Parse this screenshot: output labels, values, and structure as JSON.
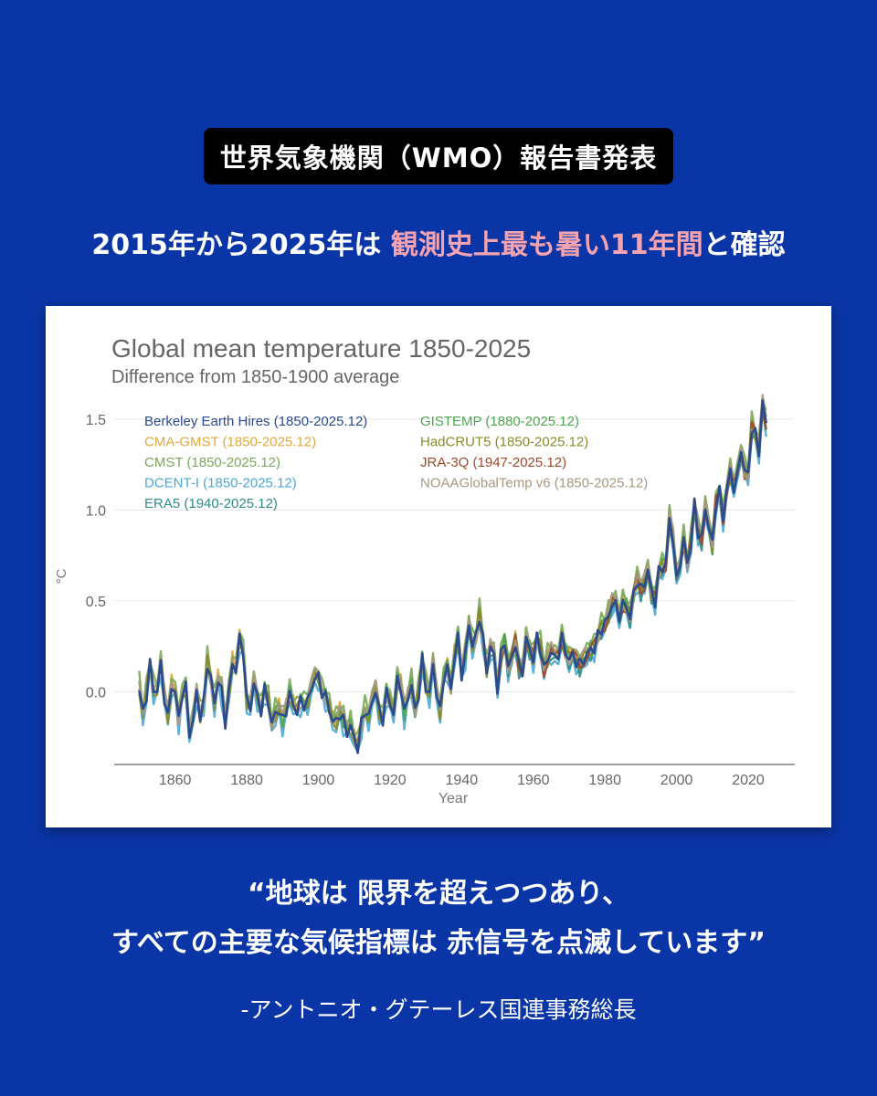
{
  "badge": "世界気象機関（WMO）報告書発表",
  "headline": {
    "part1": "2015年から2025年は ",
    "highlight": "観測史上最も暑い11年間",
    "part2": "と確認",
    "highlight_color": "#f5a3b0"
  },
  "quote": {
    "line1": "“地球は 限界を超えつつあり、",
    "line2": "すべての主要な気候指標は 赤信号を点滅しています”"
  },
  "author": "-アントニオ・グテーレス国連事務総長",
  "chart_data": {
    "type": "line",
    "title": "Global mean temperature 1850-2025",
    "subtitle": "Difference from 1850-1900 average",
    "xlabel": "Year",
    "ylabel": "°C",
    "xlim": [
      1843,
      2033
    ],
    "ylim": [
      -0.4,
      1.62
    ],
    "xticks": [
      1860,
      1880,
      1900,
      1920,
      1940,
      1960,
      1980,
      2000,
      2020
    ],
    "yticks": [
      0.0,
      0.5,
      1.0,
      1.5
    ],
    "grid": true,
    "legend_position": "top-left",
    "anchor_years": [
      1850,
      1855,
      1860,
      1865,
      1870,
      1875,
      1878,
      1880,
      1885,
      1890,
      1895,
      1900,
      1905,
      1910,
      1915,
      1920,
      1925,
      1930,
      1935,
      1940,
      1944,
      1945,
      1950,
      1955,
      1960,
      1965,
      1970,
      1975,
      1980,
      1985,
      1990,
      1995,
      1998,
      2000,
      2005,
      2010,
      2015,
      2016,
      2020,
      2023,
      2024,
      2025
    ],
    "anchor_values": [
      -0.02,
      0.05,
      -0.05,
      -0.12,
      0.05,
      -0.05,
      0.28,
      0.02,
      -0.08,
      -0.12,
      -0.06,
      0.05,
      -0.15,
      -0.25,
      -0.08,
      -0.05,
      -0.03,
      0.05,
      0.02,
      0.22,
      0.35,
      0.28,
      0.15,
      0.2,
      0.22,
      0.2,
      0.22,
      0.15,
      0.42,
      0.45,
      0.58,
      0.6,
      0.85,
      0.7,
      0.88,
      0.95,
      1.1,
      1.25,
      1.25,
      1.45,
      1.55,
      1.45
    ],
    "series": [
      {
        "name": "Berkeley Earth Hires (1850-2025.12)",
        "color": "#2c4a8e",
        "start": 1850,
        "end": 2025,
        "offset": 0.0,
        "seed": 1
      },
      {
        "name": "CMA-GMST (1850-2025.12)",
        "color": "#e3a73b",
        "start": 1850,
        "end": 2025,
        "offset": 0.02,
        "seed": 2
      },
      {
        "name": "CMST (1850-2025.12)",
        "color": "#7aa85a",
        "start": 1850,
        "end": 2025,
        "offset": 0.05,
        "seed": 3
      },
      {
        "name": "DCENT-I (1850-2025.12)",
        "color": "#4aa8d6",
        "start": 1850,
        "end": 2025,
        "offset": -0.04,
        "seed": 4
      },
      {
        "name": "ERA5 (1940-2025.12)",
        "color": "#2e8b85",
        "start": 1940,
        "end": 2025,
        "offset": -0.02,
        "seed": 5
      },
      {
        "name": "GISTEMP (1880-2025.12)",
        "color": "#4fa650",
        "start": 1880,
        "end": 2025,
        "offset": 0.01,
        "seed": 6
      },
      {
        "name": "HadCRUT5 (1850-2025.12)",
        "color": "#8a8a2a",
        "start": 1850,
        "end": 2025,
        "offset": 0.0,
        "seed": 7
      },
      {
        "name": "JRA-3Q (1947-2025.12)",
        "color": "#a04a2a",
        "start": 1947,
        "end": 2025,
        "offset": 0.0,
        "seed": 8
      },
      {
        "name": "NOAAGlobalTemp v6 (1850-2025.12)",
        "color": "#a89880",
        "start": 1850,
        "end": 2025,
        "offset": 0.01,
        "seed": 9
      }
    ]
  }
}
